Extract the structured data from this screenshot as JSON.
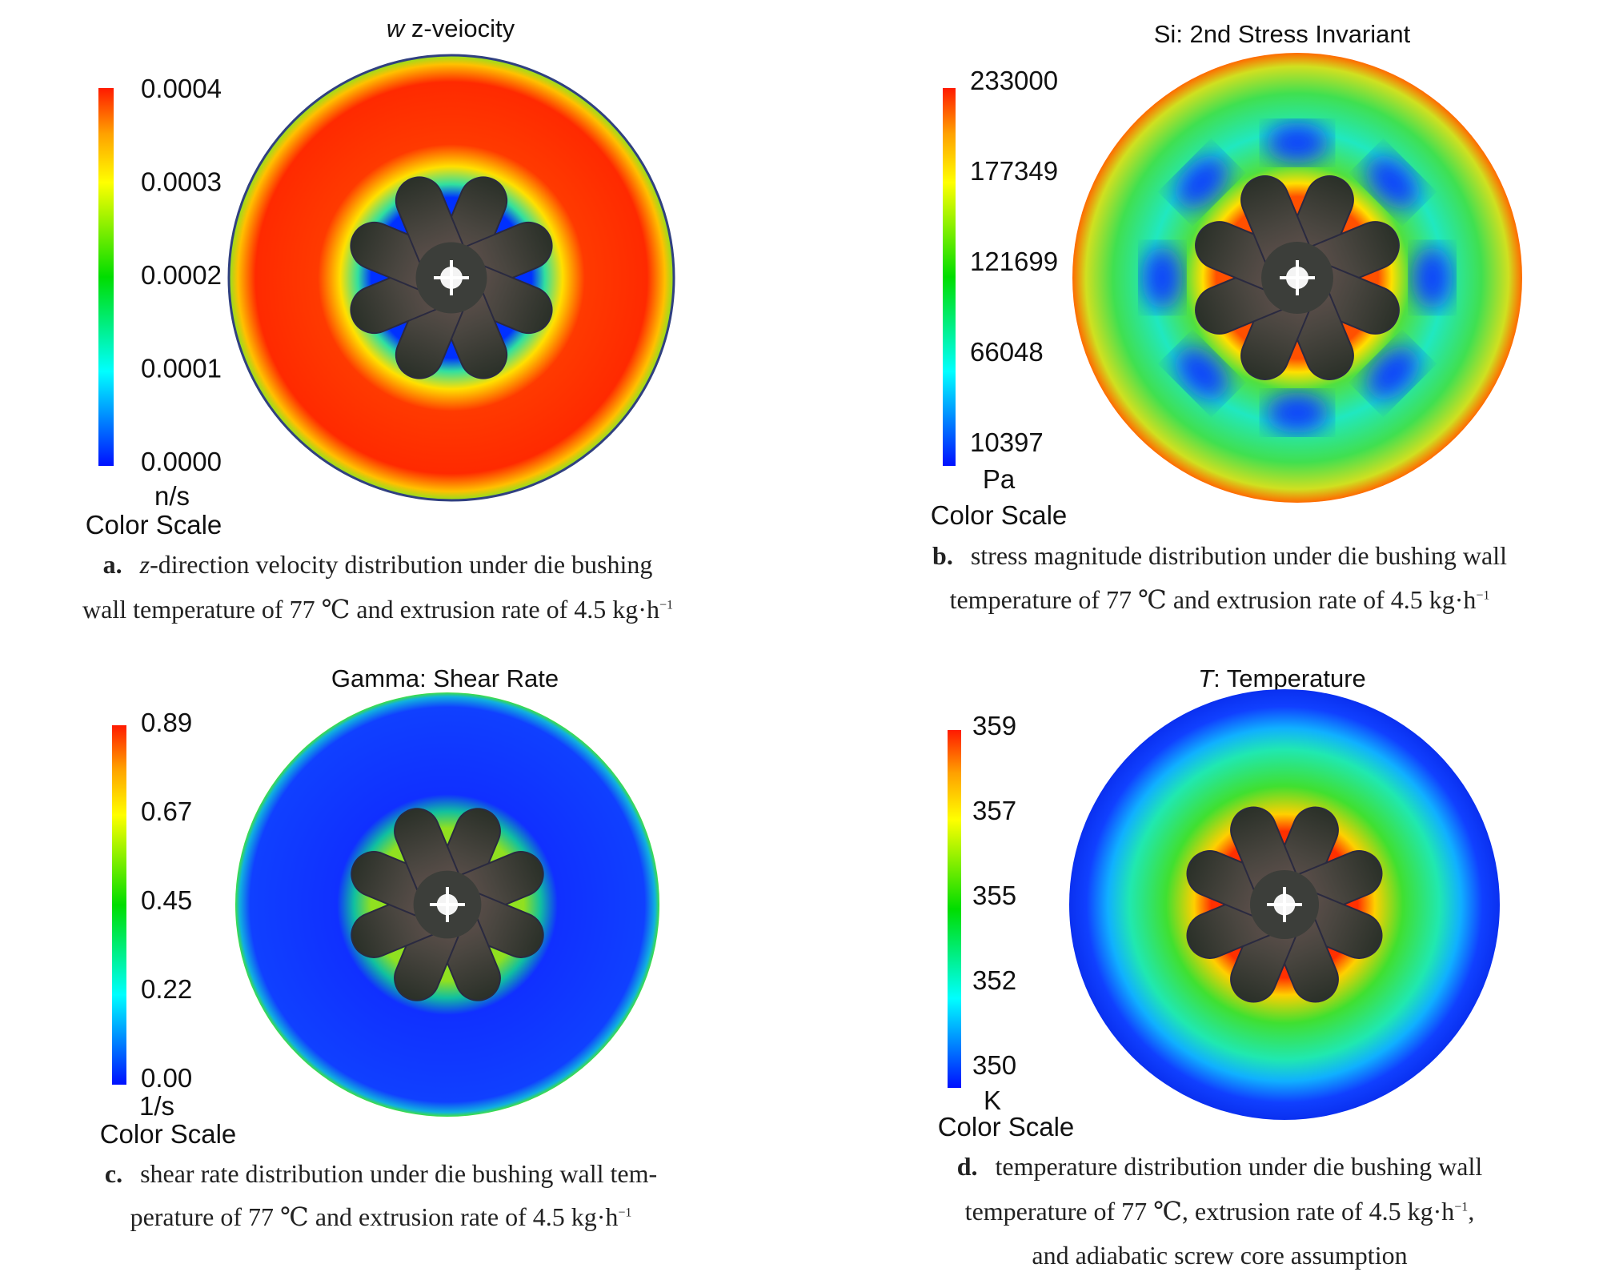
{
  "panels": [
    {
      "id": "a",
      "title_var": "w",
      "title_text": " z-veiocity",
      "ticks": [
        "0.0004",
        "0.0003",
        "0.0002",
        "0.0001",
        "0.0000"
      ],
      "unit": "n/s",
      "scale_label": "Color Scale",
      "caption": {
        "letter": "a.",
        "line1_italic": "z",
        "line1": "-direction velocity distribution under die bushing",
        "line2": "wall temperature of 77 ℃ and extrusion rate of 4.5 kg·h",
        "sup": "−1"
      }
    },
    {
      "id": "b",
      "title_var": "",
      "title_text": "Si: 2nd Stress Invariant",
      "ticks": [
        "233000",
        "177349",
        "121699",
        "66048",
        "10397"
      ],
      "unit": "Pa",
      "scale_label": "Color Scale",
      "caption": {
        "letter": "b.",
        "line1": "stress magnitude distribution under die bushing wall",
        "line2": "temperature of 77 ℃ and extrusion rate of 4.5 kg·h",
        "sup": "−1"
      }
    },
    {
      "id": "c",
      "title_var": "",
      "title_text": "Gamma: Shear Rate",
      "ticks": [
        "0.89",
        "0.67",
        "0.45",
        "0.22",
        "0.00"
      ],
      "unit": "1/s",
      "scale_label": "Color Scale",
      "caption": {
        "letter": "c.",
        "line1": "shear rate distribution under die bushing wall tem-",
        "line2": "perature of 77 ℃ and extrusion rate of 4.5  kg·h",
        "sup": "−1"
      }
    },
    {
      "id": "d",
      "title_var": "T",
      "title_text": ": Temperature",
      "ticks": [
        "359",
        "357",
        "355",
        "352",
        "350"
      ],
      "unit": "K",
      "scale_label": "Color Scale",
      "caption": {
        "letter": "d.",
        "line1": "temperature distribution under die bushing wall",
        "line2": "temperature of 77 ℃, extrusion rate of 4.5 kg·h",
        "sup": "−1",
        "line2_end": ",",
        "line3": "and adiabatic screw core assumption"
      }
    }
  ],
  "colors": {
    "scale": [
      "#ff1a00",
      "#ffa000",
      "#ffff00",
      "#00dd00",
      "#00ffff",
      "#0010ff"
    ],
    "gear": "#3a3d38"
  }
}
